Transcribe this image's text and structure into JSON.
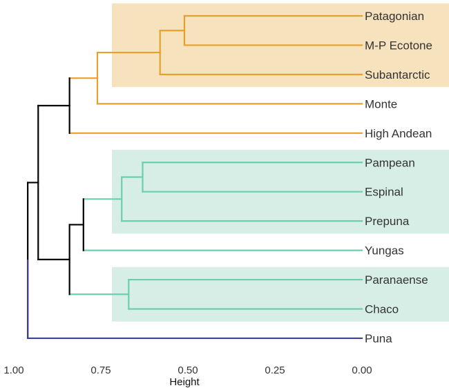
{
  "chart_data": {
    "type": "dendrogram",
    "xlabel": "Height",
    "x_axis_reversed": true,
    "xlim": [
      1.0,
      0.0
    ],
    "x_ticks": [
      {
        "value": 1.0,
        "label": "1.00"
      },
      {
        "value": 0.75,
        "label": "0.75"
      },
      {
        "value": 0.5,
        "label": "0.50"
      },
      {
        "value": 0.25,
        "label": "0.25"
      },
      {
        "value": 0.0,
        "label": "0.00"
      }
    ],
    "leaves": [
      "Patagonian",
      "M-P Ecotone",
      "Subantarctic",
      "Monte",
      "High Andean",
      "Pampean",
      "Espinal",
      "Prepuna",
      "Yungas",
      "Paranaense",
      "Chaco",
      "Puna"
    ],
    "merges": [
      {
        "id": "m1",
        "children": [
          "Patagonian",
          "M-P Ecotone"
        ],
        "height": 0.51,
        "color": "#E8A02A"
      },
      {
        "id": "m2",
        "children": [
          "m1",
          "Subantarctic"
        ],
        "height": 0.58,
        "color": "#E8A02A"
      },
      {
        "id": "m3",
        "children": [
          "m2",
          "Monte"
        ],
        "height": 0.76,
        "color": "#E8A02A"
      },
      {
        "id": "m4",
        "children": [
          "m3",
          "High Andean"
        ],
        "height": 0.84,
        "color": "#000000"
      },
      {
        "id": "m5",
        "children": [
          "Pampean",
          "Espinal"
        ],
        "height": 0.63,
        "color": "#6CCDB0"
      },
      {
        "id": "m6",
        "children": [
          "m5",
          "Prepuna"
        ],
        "height": 0.69,
        "color": "#6CCDB0"
      },
      {
        "id": "m7",
        "children": [
          "m6",
          "Yungas"
        ],
        "height": 0.8,
        "color": "#000000"
      },
      {
        "id": "m8",
        "children": [
          "Paranaense",
          "Chaco"
        ],
        "height": 0.67,
        "color": "#6CCDB0"
      },
      {
        "id": "m9",
        "children": [
          "m7",
          "m8"
        ],
        "height": 0.84,
        "color": "#000000"
      },
      {
        "id": "m10",
        "children": [
          "m4",
          "m9"
        ],
        "height": 0.93,
        "color": "#000000"
      },
      {
        "id": "m11",
        "children": [
          "m10",
          "Puna"
        ],
        "height": 0.96,
        "color": "#000000"
      }
    ],
    "root_connector_color": "#3F3FA8",
    "leaf_colors": {
      "Patagonian": "#E8A02A",
      "M-P Ecotone": "#E8A02A",
      "Subantarctic": "#E8A02A",
      "Monte": "#E8A02A",
      "High Andean": "#E8A02A",
      "Pampean": "#6CCDB0",
      "Espinal": "#6CCDB0",
      "Prepuna": "#6CCDB0",
      "Yungas": "#6CCDB0",
      "Paranaense": "#6CCDB0",
      "Chaco": "#6CCDB0",
      "Puna": "#3F3FA8"
    },
    "highlight_groups": [
      {
        "leaves": [
          "Patagonian",
          "M-P Ecotone",
          "Subantarctic"
        ],
        "color": "#F6E2BC"
      },
      {
        "leaves": [
          "Pampean",
          "Espinal",
          "Prepuna"
        ],
        "color": "#D6EEE5"
      },
      {
        "leaves": [
          "Paranaense",
          "Chaco"
        ],
        "color": "#D6EEE5"
      }
    ],
    "grid": false
  }
}
